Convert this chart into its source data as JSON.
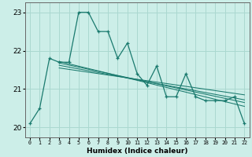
{
  "xlabel": "Humidex (Indice chaleur)",
  "bg_color": "#cceee8",
  "grid_color": "#aad8d0",
  "line_color": "#1a7a6e",
  "xlim": [
    -0.5,
    22.5
  ],
  "ylim": [
    19.75,
    23.25
  ],
  "yticks": [
    20,
    21,
    22,
    23
  ],
  "xtick_labels": [
    "0",
    "1",
    "2",
    "3",
    "4",
    "5",
    "6",
    "7",
    "8",
    "9",
    "10",
    "11",
    "12",
    "13",
    "14",
    "15",
    "16",
    "17",
    "18",
    "19",
    "20",
    "21",
    "22"
  ],
  "data_x": [
    0,
    1,
    2,
    3,
    4,
    5,
    6,
    7,
    8,
    9,
    10,
    11,
    12,
    13,
    14,
    15,
    16,
    17,
    18,
    19,
    20,
    21,
    22
  ],
  "data_y": [
    20.1,
    20.5,
    21.8,
    21.7,
    21.7,
    23.0,
    23.0,
    22.5,
    22.5,
    21.8,
    22.2,
    21.4,
    21.1,
    21.6,
    20.8,
    20.8,
    21.4,
    20.8,
    20.7,
    20.7,
    20.7,
    20.8,
    20.1
  ],
  "trend_lines": [
    {
      "x0": 3.0,
      "y0": 21.72,
      "x1": 22.0,
      "y1": 20.55
    },
    {
      "x0": 3.0,
      "y0": 21.68,
      "x1": 22.0,
      "y1": 20.65
    },
    {
      "x0": 3.0,
      "y0": 21.62,
      "x1": 22.0,
      "y1": 20.72
    },
    {
      "x0": 3.0,
      "y0": 21.55,
      "x1": 22.0,
      "y1": 20.85
    }
  ],
  "xlabel_fontsize": 6.5,
  "ylabel_fontsize": 6,
  "xtick_fontsize": 4.8,
  "ytick_fontsize": 6.5
}
